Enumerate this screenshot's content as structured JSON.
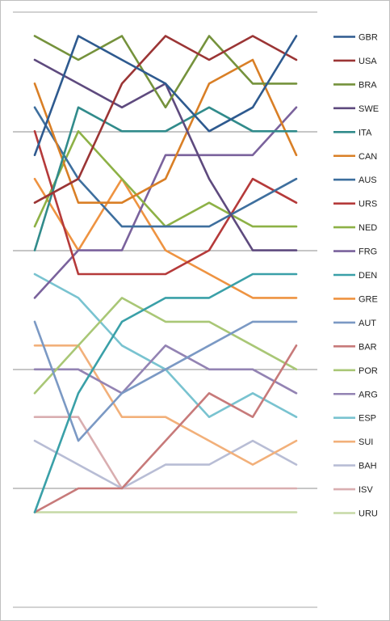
{
  "chart_data": {
    "type": "line",
    "title": "",
    "xlabel": "",
    "ylabel": "",
    "x": [
      1,
      2,
      3,
      4,
      5,
      6,
      7
    ],
    "ylim": [
      1,
      25
    ],
    "y_inverted": true,
    "grid": true,
    "legend_position": "right",
    "series": [
      {
        "name": "GBR",
        "color": "#2e5a8f",
        "values": [
          6,
          1,
          2,
          3,
          5,
          4,
          1
        ]
      },
      {
        "name": "USA",
        "color": "#9b3535",
        "values": [
          8,
          7,
          3,
          1,
          2,
          1,
          2
        ]
      },
      {
        "name": "BRA",
        "color": "#75923c",
        "values": [
          1,
          2,
          1,
          4,
          1,
          3,
          3
        ]
      },
      {
        "name": "SWE",
        "color": "#5e4a7e",
        "values": [
          2,
          3,
          4,
          3,
          7,
          10,
          10
        ]
      },
      {
        "name": "ITA",
        "color": "#318b8b",
        "values": [
          10,
          4,
          5,
          5,
          4,
          5,
          5
        ]
      },
      {
        "name": "CAN",
        "color": "#d97f26",
        "values": [
          3,
          8,
          8,
          7,
          3,
          2,
          6
        ]
      },
      {
        "name": "AUS",
        "color": "#3e6f9e",
        "values": [
          4,
          7,
          9,
          9,
          9,
          8,
          7
        ]
      },
      {
        "name": "URS",
        "color": "#b53a3a",
        "values": [
          5,
          11,
          11,
          11,
          10,
          7,
          8
        ]
      },
      {
        "name": "NED",
        "color": "#8db146",
        "values": [
          9,
          5,
          7,
          9,
          8,
          9,
          9
        ]
      },
      {
        "name": "FRG",
        "color": "#7a629c",
        "values": [
          12,
          10,
          10,
          6,
          6,
          6,
          4
        ]
      },
      {
        "name": "DEN",
        "color": "#3aa0a8",
        "values": [
          21,
          16,
          13,
          12,
          12,
          11,
          11
        ]
      },
      {
        "name": "GRE",
        "color": "#ee9341",
        "values": [
          7,
          10,
          7,
          10,
          11,
          12,
          12
        ]
      },
      {
        "name": "AUT",
        "color": "#7b99c4",
        "values": [
          13,
          18,
          16,
          15,
          14,
          13,
          13
        ]
      },
      {
        "name": "BAR",
        "color": "#c77a7a",
        "values": [
          21,
          20,
          20,
          18,
          16,
          17,
          14
        ]
      },
      {
        "name": "POR",
        "color": "#a9c776",
        "values": [
          16,
          14,
          12,
          13,
          13,
          14,
          15
        ]
      },
      {
        "name": "ARG",
        "color": "#9383b3",
        "values": [
          15,
          15,
          16,
          14,
          15,
          15,
          16
        ]
      },
      {
        "name": "ESP",
        "color": "#79c3d0",
        "values": [
          11,
          12,
          14,
          15,
          17,
          16,
          17
        ]
      },
      {
        "name": "SUI",
        "color": "#f2b07a",
        "values": [
          14,
          14,
          17,
          17,
          18,
          19,
          18
        ]
      },
      {
        "name": "BAH",
        "color": "#b8bdd5",
        "values": [
          18,
          19,
          20,
          19,
          19,
          18,
          19
        ]
      },
      {
        "name": "ISV",
        "color": "#d9aeb0",
        "values": [
          17,
          17,
          20,
          20,
          20,
          20,
          20
        ]
      },
      {
        "name": "URU",
        "color": "#c6d9a6",
        "values": [
          21,
          21,
          21,
          21,
          21,
          21,
          21
        ]
      }
    ]
  }
}
